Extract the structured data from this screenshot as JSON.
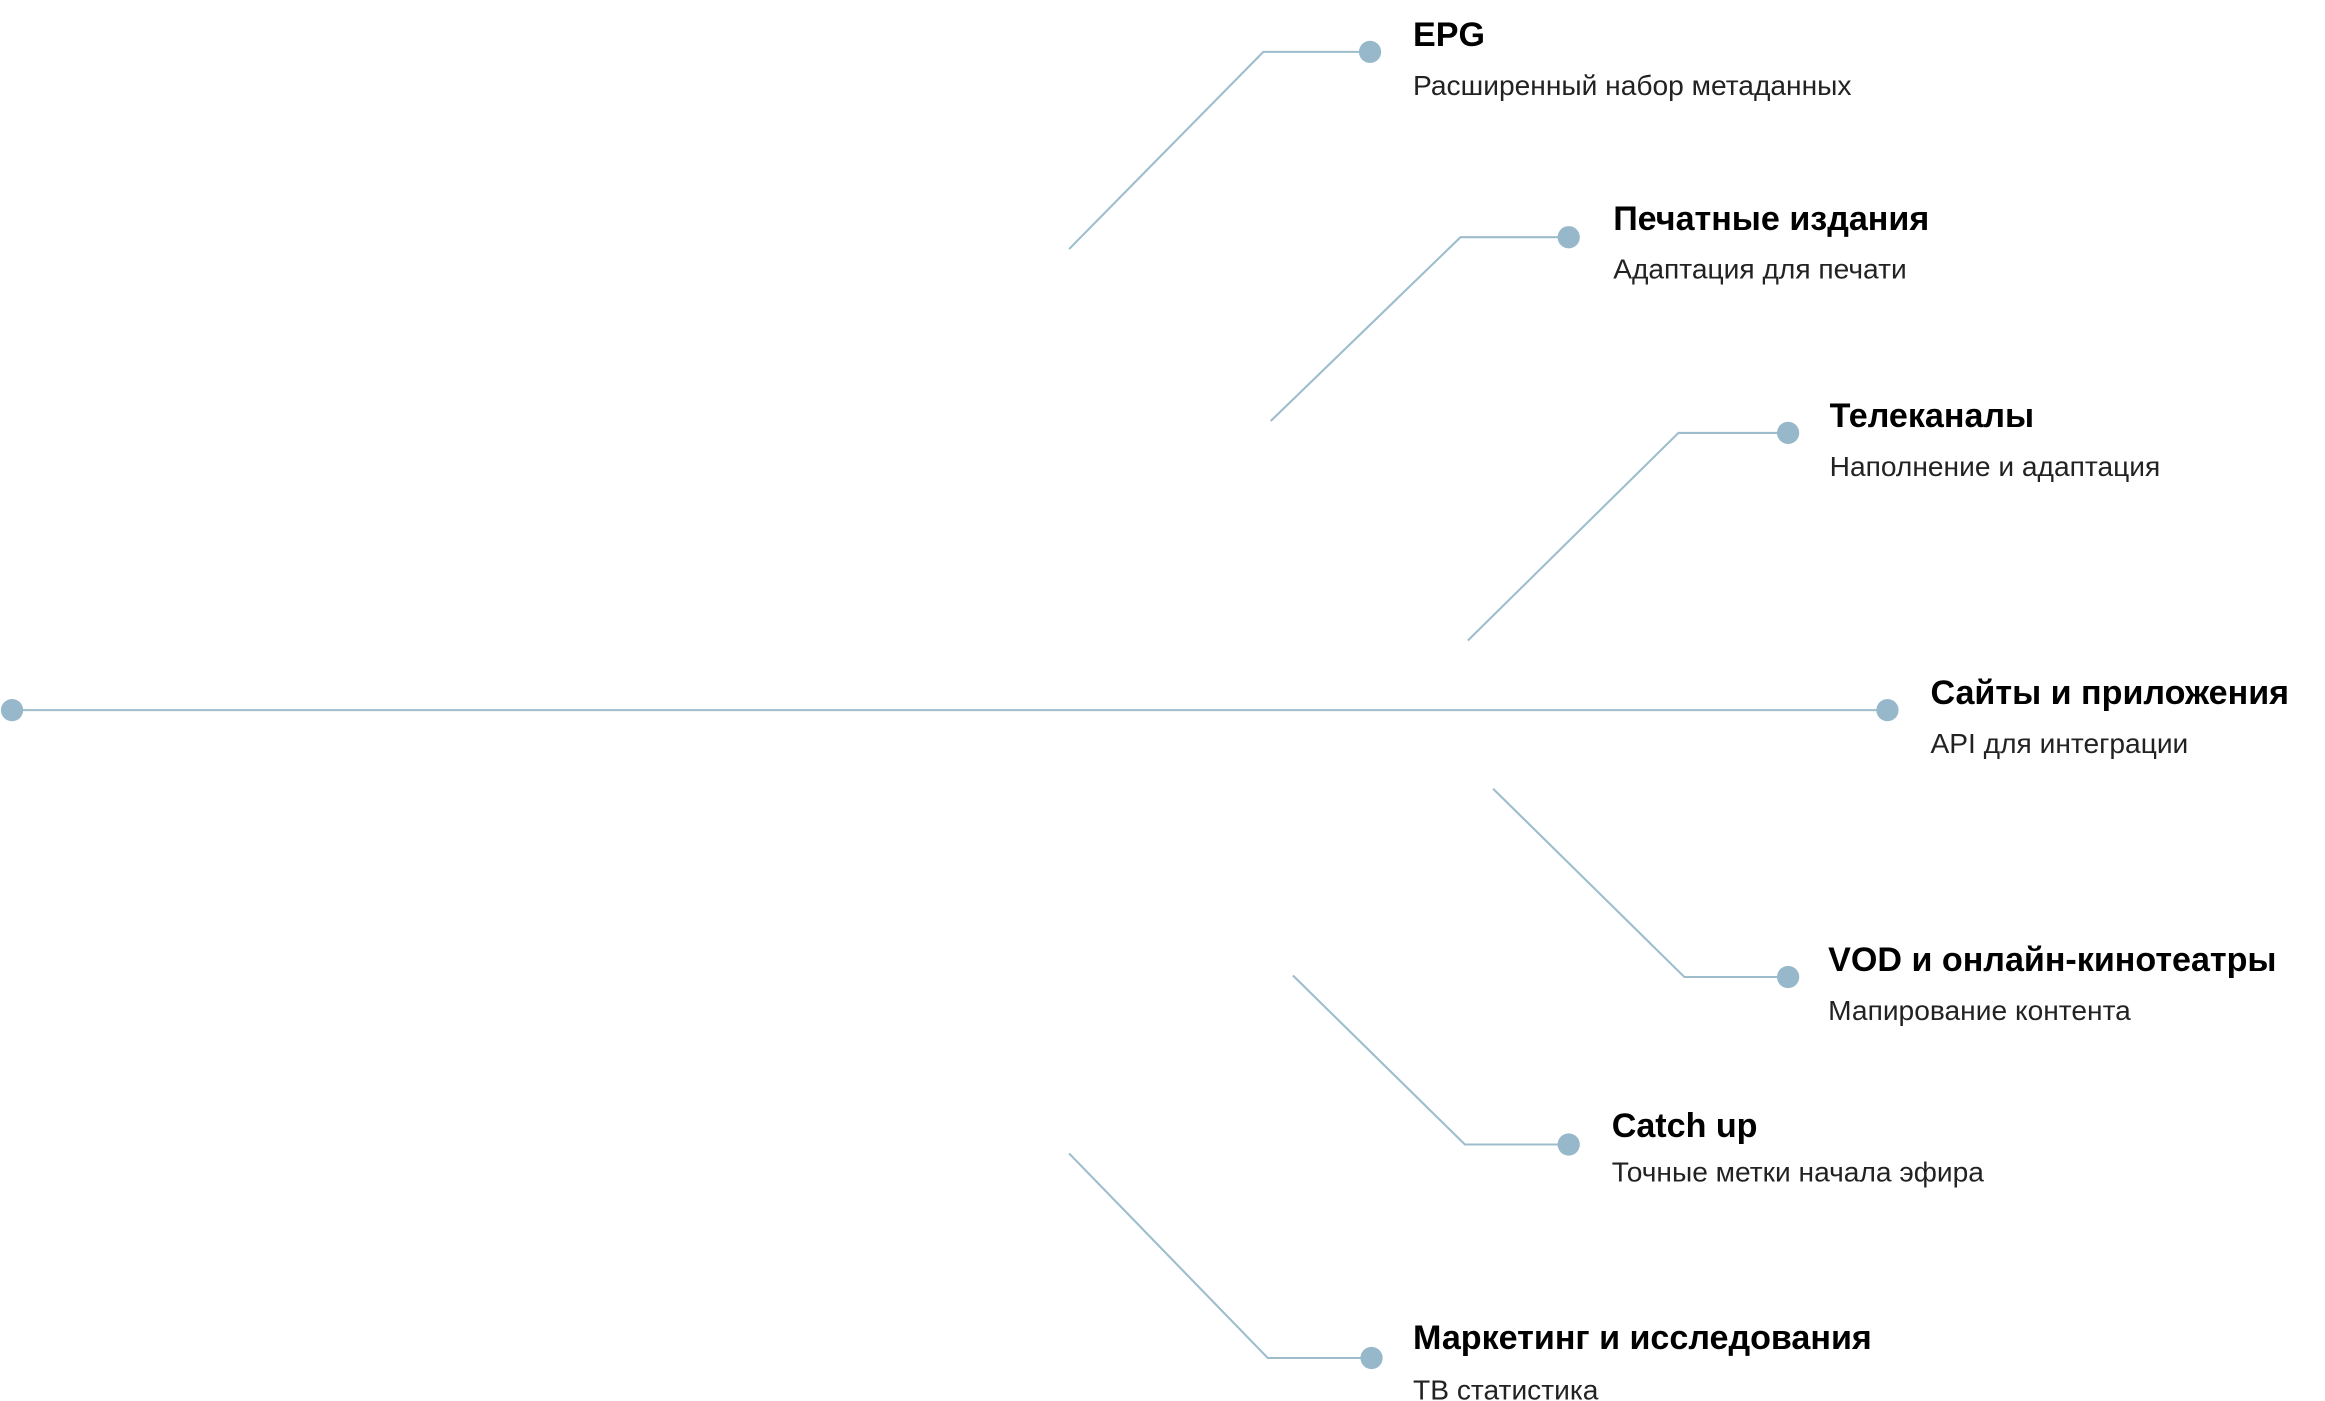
{
  "colors": {
    "line": "#9dbdcd",
    "dot": "#97b8ca",
    "title": "#000000",
    "subtitle": "#222222"
  },
  "items": [
    {
      "title": "EPG",
      "subtitle": "Расширенный набор метаданных"
    },
    {
      "title": "Печатные издания",
      "subtitle": "Адаптация для печати"
    },
    {
      "title": "Телеканалы",
      "subtitle": "Наполнение и адаптация"
    },
    {
      "title": "Сайты и приложения",
      "subtitle": "API для интеграции"
    },
    {
      "title": "VOD и онлайн-кинотеатры",
      "subtitle": "Мапирование контента"
    },
    {
      "title": "Catch up",
      "subtitle": "Точные метки начала эфира"
    },
    {
      "title": "Маркетинг и исследования",
      "subtitle": "ТВ статистика"
    }
  ]
}
